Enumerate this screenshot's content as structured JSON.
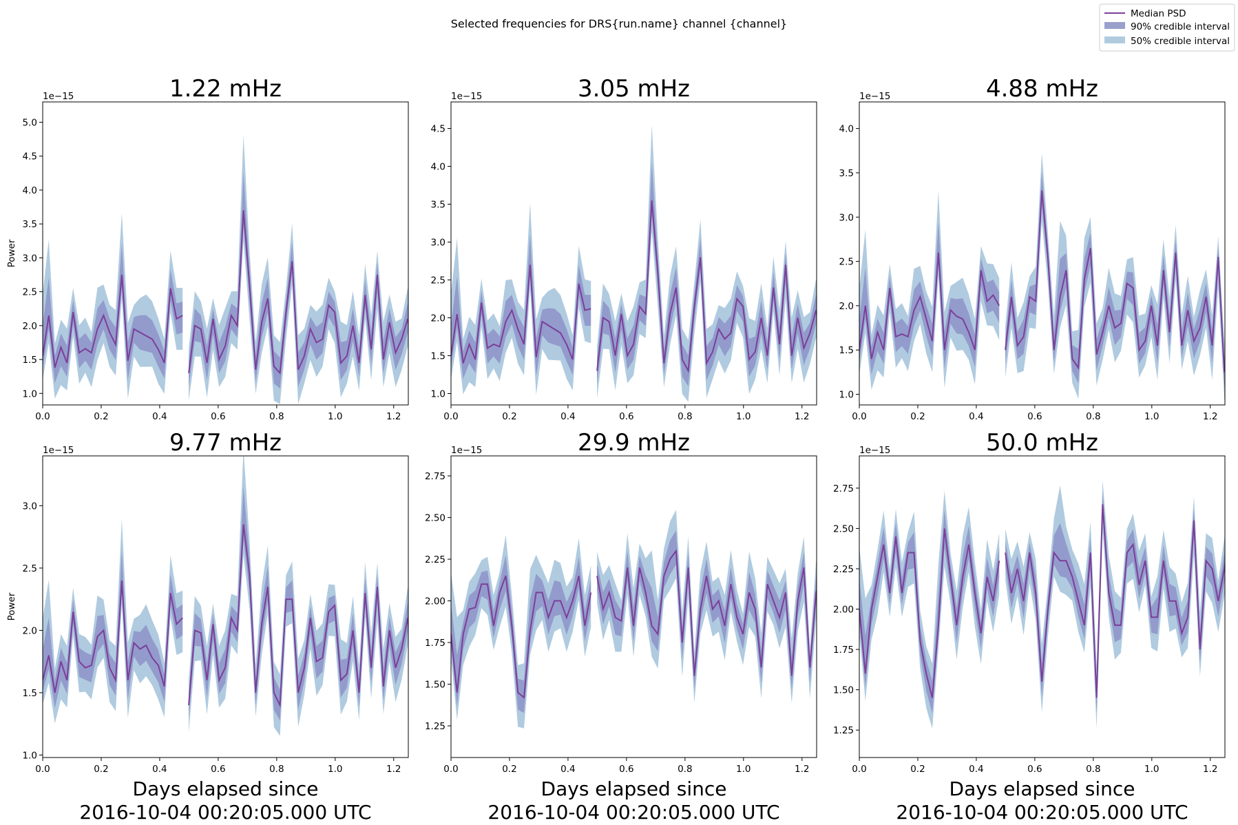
{
  "suptitle": "Selected frequencies for DRS{run.name} channel {channel}",
  "legend": {
    "location": "upper right",
    "entries": [
      {
        "label": "Median PSD",
        "kind": "line",
        "color": "#7b3f98"
      },
      {
        "label": "90% credible interval",
        "kind": "band",
        "color": "#9aa0cc"
      },
      {
        "label": "50% credible interval",
        "kind": "band",
        "color": "#b0cbe0"
      }
    ]
  },
  "colors": {
    "median": "#7b3f98",
    "ci90": "#8e93c8",
    "ci50": "#b0cbe0"
  },
  "xlabel_line1": "Days elapsed since",
  "xlabel_line2": "2016-10-04 00:20:05.000 UTC",
  "ylabel": "Power",
  "offset_text": "1e−15",
  "chart_data": [
    {
      "type": "line",
      "title": "1.22 mHz",
      "xlim": [
        0,
        1.25
      ],
      "ylim": [
        0.83,
        5.3
      ],
      "x_step": 0.0208,
      "gap_after_index": 23,
      "yticks": [
        1.0,
        1.5,
        2.0,
        2.5,
        3.0,
        3.5,
        4.0,
        4.5,
        5.0
      ],
      "ytick_labels": [
        "1.0",
        "1.5",
        "2.0",
        "2.5",
        "3.0",
        "3.5",
        "4.0",
        "4.5",
        "5.0"
      ],
      "xticks": [
        0,
        0.2,
        0.4,
        0.6,
        0.8,
        1.0,
        1.2
      ],
      "xtick_labels": [
        "0.0",
        "0.2",
        "0.4",
        "0.6",
        "0.8",
        "1.0",
        "1.2"
      ],
      "median": [
        1.55,
        2.15,
        1.38,
        1.68,
        1.45,
        2.2,
        1.6,
        1.66,
        1.6,
        1.95,
        2.15,
        1.9,
        1.72,
        2.75,
        1.48,
        1.95,
        1.9,
        1.85,
        1.8,
        1.65,
        1.45,
        2.55,
        2.1,
        2.15,
        1.3,
        2.0,
        1.95,
        1.45,
        2.1,
        1.5,
        1.7,
        2.15,
        2.0,
        3.7,
        2.6,
        1.35,
        2.05,
        2.4,
        1.4,
        1.3,
        2.2,
        2.95,
        1.35,
        1.55,
        1.95,
        1.75,
        1.8,
        2.3,
        2.2,
        1.45,
        1.55,
        2.0,
        1.45,
        2.45,
        1.65,
        2.75,
        1.5,
        2.05,
        1.6,
        1.8,
        2.1,
        1.55,
        2.55,
        1.15,
        1.45,
        1.25
      ]
    },
    {
      "type": "line",
      "title": "3.05 mHz",
      "xlim": [
        0,
        1.25
      ],
      "ylim": [
        0.85,
        4.85
      ],
      "x_step": 0.0208,
      "gap_after_index": 23,
      "yticks": [
        1.0,
        1.5,
        2.0,
        2.5,
        3.0,
        3.5,
        4.0,
        4.5
      ],
      "ytick_labels": [
        "1.0",
        "1.5",
        "2.0",
        "2.5",
        "3.0",
        "3.5",
        "4.0",
        "4.5"
      ],
      "xticks": [
        0,
        0.2,
        0.4,
        0.6,
        0.8,
        1.0,
        1.2
      ],
      "xtick_labels": [
        "0.0",
        "0.2",
        "0.4",
        "0.6",
        "0.8",
        "1.0",
        "1.2"
      ],
      "median": [
        1.5,
        2.05,
        1.4,
        1.65,
        1.45,
        2.2,
        1.6,
        1.65,
        1.62,
        1.95,
        2.1,
        1.85,
        1.65,
        2.7,
        1.48,
        1.95,
        1.9,
        1.85,
        1.8,
        1.65,
        1.45,
        2.45,
        2.1,
        2.12,
        1.3,
        2.0,
        1.95,
        1.5,
        2.05,
        1.5,
        1.65,
        2.15,
        2.05,
        3.55,
        2.6,
        1.4,
        2.05,
        2.4,
        1.45,
        1.3,
        2.15,
        2.8,
        1.4,
        1.55,
        1.85,
        1.72,
        1.8,
        2.25,
        2.15,
        1.45,
        1.55,
        2.0,
        1.5,
        2.4,
        1.65,
        2.7,
        1.5,
        2.0,
        1.6,
        1.8,
        2.1,
        1.55,
        2.55,
        1.2,
        1.5,
        1.25
      ]
    },
    {
      "type": "line",
      "title": "4.88 mHz",
      "xlim": [
        0,
        1.25
      ],
      "ylim": [
        0.88,
        4.3
      ],
      "x_step": 0.0208,
      "gap_after_index": 23,
      "yticks": [
        1.0,
        1.5,
        2.0,
        2.5,
        3.0,
        3.5,
        4.0
      ],
      "ytick_labels": [
        "1.0",
        "1.5",
        "2.0",
        "2.5",
        "3.0",
        "3.5",
        "4.0"
      ],
      "xticks": [
        0,
        0.2,
        0.4,
        0.6,
        0.8,
        1.0,
        1.2
      ],
      "xtick_labels": [
        "0.0",
        "0.2",
        "0.4",
        "0.6",
        "0.8",
        "1.0",
        "1.2"
      ],
      "median": [
        1.5,
        2.0,
        1.4,
        1.7,
        1.5,
        2.2,
        1.65,
        1.68,
        1.65,
        1.95,
        2.1,
        1.85,
        1.6,
        2.6,
        1.5,
        1.95,
        1.88,
        1.85,
        1.7,
        1.5,
        2.4,
        2.05,
        2.12,
        2.0,
        1.5,
        2.1,
        1.55,
        1.65,
        2.1,
        2.05,
        3.3,
        2.55,
        1.5,
        2.1,
        2.4,
        1.4,
        1.3,
        2.3,
        2.65,
        1.45,
        1.7,
        2.0,
        1.75,
        1.8,
        2.25,
        2.2,
        1.5,
        1.6,
        2.0,
        1.55,
        2.4,
        1.7,
        2.6,
        1.55,
        1.95,
        1.6,
        1.75,
        2.1,
        1.55,
        2.55,
        1.25,
        1.45,
        1.25
      ]
    },
    {
      "type": "line",
      "title": "9.77 mHz",
      "xlim": [
        0,
        1.25
      ],
      "ylim": [
        0.98,
        3.4
      ],
      "x_step": 0.0208,
      "gap_after_index": 23,
      "yticks": [
        1.0,
        1.5,
        2.0,
        2.5,
        3.0
      ],
      "ytick_labels": [
        "1.0",
        "1.5",
        "2.0",
        "2.5",
        "3.0"
      ],
      "xticks": [
        0,
        0.2,
        0.4,
        0.6,
        0.8,
        1.0,
        1.2
      ],
      "xtick_labels": [
        "0.0",
        "0.2",
        "0.4",
        "0.6",
        "0.8",
        "1.0",
        "1.2"
      ],
      "median": [
        1.6,
        1.8,
        1.5,
        1.75,
        1.6,
        2.15,
        1.75,
        1.7,
        1.72,
        1.95,
        2.0,
        1.7,
        1.6,
        2.4,
        1.6,
        1.9,
        1.85,
        1.88,
        1.78,
        1.72,
        1.55,
        2.3,
        2.05,
        2.1,
        1.4,
        2.0,
        1.98,
        1.6,
        2.05,
        1.6,
        1.7,
        2.1,
        2.0,
        2.85,
        2.45,
        1.5,
        2.05,
        2.35,
        1.5,
        1.4,
        2.25,
        2.25,
        1.5,
        1.7,
        2.1,
        1.75,
        1.78,
        2.15,
        2.2,
        1.6,
        1.65,
        2.0,
        1.5,
        2.3,
        1.7,
        2.35,
        1.55,
        2.0,
        1.7,
        1.85,
        2.1,
        1.55,
        2.55,
        1.3,
        1.5,
        1.3
      ]
    },
    {
      "type": "line",
      "title": "29.9 mHz",
      "xlim": [
        0,
        1.25
      ],
      "ylim": [
        1.06,
        2.87
      ],
      "x_step": 0.0208,
      "gap_after_index": 23,
      "yticks": [
        1.25,
        1.5,
        1.75,
        2.0,
        2.25,
        2.5,
        2.75
      ],
      "ytick_labels": [
        "1.25",
        "1.50",
        "1.75",
        "2.00",
        "2.25",
        "2.50",
        "2.75"
      ],
      "xticks": [
        0,
        0.2,
        0.4,
        0.6,
        0.8,
        1.0,
        1.2
      ],
      "xtick_labels": [
        "0.0",
        "0.2",
        "0.4",
        "0.6",
        "0.8",
        "1.0",
        "1.2"
      ],
      "median": [
        1.8,
        1.45,
        1.8,
        1.95,
        1.96,
        2.1,
        2.1,
        1.85,
        2.05,
        2.15,
        1.85,
        1.45,
        1.42,
        1.82,
        2.05,
        2.05,
        1.9,
        2.0,
        2.0,
        1.9,
        2.0,
        2.15,
        1.85,
        2.05,
        2.15,
        1.95,
        2.05,
        1.9,
        1.88,
        2.2,
        1.85,
        2.2,
        2.05,
        1.85,
        1.8,
        2.15,
        2.25,
        2.3,
        1.75,
        2.2,
        1.55,
        1.95,
        2.15,
        1.95,
        2.0,
        1.85,
        2.1,
        1.9,
        1.8,
        2.05,
        1.95,
        1.6,
        2.1,
        2.0,
        1.9,
        2.05,
        1.55,
        2.0,
        2.2,
        1.6,
        2.05,
        2.15,
        1.65,
        2.55,
        1.75,
        1.6
      ]
    },
    {
      "type": "line",
      "title": "50.0 mHz",
      "xlim": [
        0,
        1.25
      ],
      "ylim": [
        1.08,
        2.95
      ],
      "x_step": 0.0208,
      "gap_after_index": 23,
      "yticks": [
        1.25,
        1.5,
        1.75,
        2.0,
        2.25,
        2.5,
        2.75
      ],
      "ytick_labels": [
        "1.25",
        "1.50",
        "1.75",
        "2.00",
        "2.25",
        "2.50",
        "2.75"
      ],
      "xticks": [
        0,
        0.2,
        0.4,
        0.6,
        0.8,
        1.0,
        1.2
      ],
      "xtick_labels": [
        "0.0",
        "0.2",
        "0.4",
        "0.6",
        "0.8",
        "1.0",
        "1.2"
      ],
      "median": [
        2.0,
        1.6,
        2.0,
        2.2,
        2.4,
        2.1,
        2.45,
        2.1,
        2.35,
        2.35,
        1.8,
        1.6,
        1.45,
        1.9,
        2.5,
        2.2,
        1.9,
        2.2,
        2.4,
        2.1,
        1.85,
        2.2,
        2.05,
        2.3,
        2.35,
        2.1,
        2.25,
        2.05,
        2.35,
        2.1,
        1.55,
        2.0,
        2.35,
        2.3,
        2.3,
        2.2,
        2.05,
        1.9,
        2.35,
        1.45,
        2.65,
        2.1,
        1.9,
        1.9,
        2.35,
        2.4,
        2.15,
        2.3,
        1.95,
        1.95,
        2.3,
        2.05,
        2.05,
        1.85,
        1.95,
        2.55,
        1.75,
        2.3,
        2.25,
        2.05,
        2.25,
        2.55,
        2.45,
        2.1,
        1.85,
        1.95
      ]
    }
  ]
}
